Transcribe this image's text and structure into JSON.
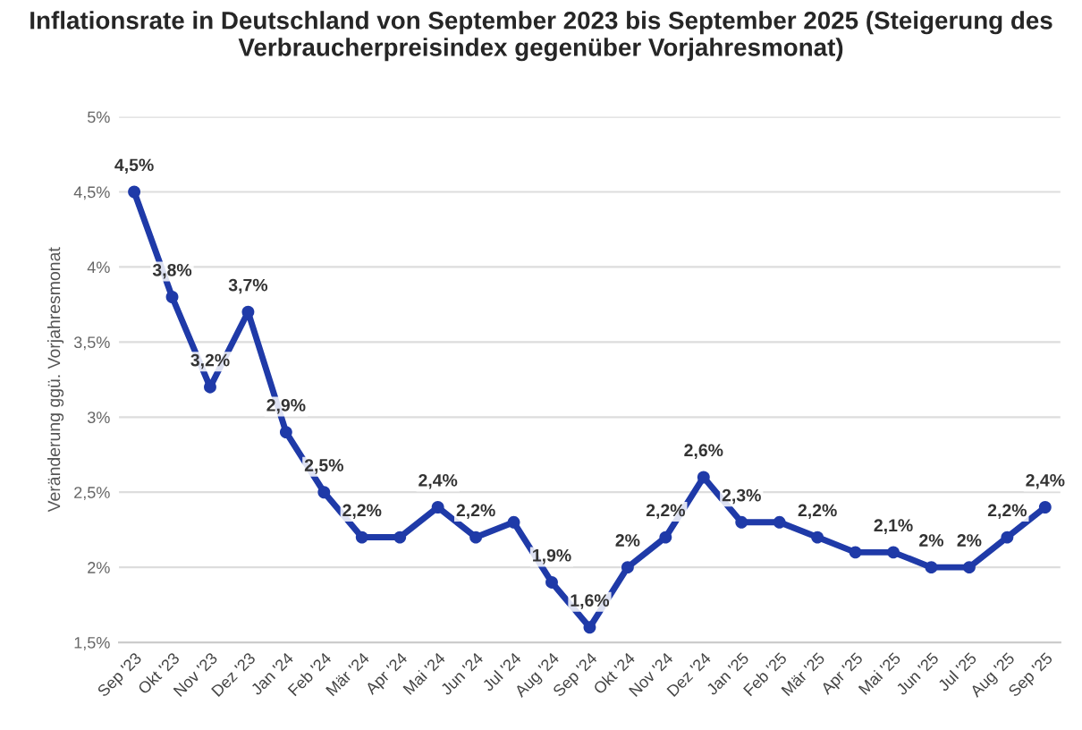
{
  "chart_data": {
    "type": "line",
    "title": "Inflationsrate in Deutschland von September 2023 bis September 2025 (Steigerung des Verbraucherpreisindex gegenüber Vorjahresmonat)",
    "ylabel": "Veränderung ggü. Vorjahresmonat",
    "categories": [
      "Sep '23",
      "Okt '23",
      "Nov '23",
      "Dez '23",
      "Jan '24",
      "Feb '24",
      "Mär '24",
      "Apr '24",
      "Mai '24",
      "Jun '24",
      "Jul '24",
      "Aug '24",
      "Sep '24",
      "Okt '24",
      "Nov '24",
      "Dez '24",
      "Jan '25",
      "Feb '25",
      "Mär '25",
      "Apr '25",
      "Mai '25",
      "Jun '25",
      "Jul '25",
      "Aug '25",
      "Sep '25"
    ],
    "series": [
      {
        "color": "#1f3aa8",
        "values": [
          4.5,
          3.8,
          3.2,
          3.7,
          2.9,
          2.5,
          2.2,
          2.2,
          2.4,
          2.2,
          2.3,
          1.9,
          1.6,
          2.0,
          2.2,
          2.6,
          2.3,
          2.3,
          2.2,
          2.1,
          2.1,
          2.0,
          2.0,
          2.2,
          2.4
        ],
        "value_labels": [
          "4,5%",
          "3,8%",
          "3,2%",
          "3,7%",
          "2,9%",
          "2,5%",
          "2,2%",
          null,
          "2,4%",
          "2,2%",
          null,
          "1,9%",
          "1,6%",
          "2%",
          "2,2%",
          "2,6%",
          "2,3%",
          null,
          "2,2%",
          null,
          "2,1%",
          "2%",
          "2%",
          "2,2%",
          "2,4%"
        ]
      }
    ],
    "ylim": [
      1.5,
      5
    ],
    "yticks": [
      {
        "value": 1.5,
        "label": "1,5%"
      },
      {
        "value": 2,
        "label": "2%"
      },
      {
        "value": 2.5,
        "label": "2,5%"
      },
      {
        "value": 3,
        "label": "3%"
      },
      {
        "value": 3.5,
        "label": "3,5%"
      },
      {
        "value": 4,
        "label": "4%"
      },
      {
        "value": 4.5,
        "label": "4,5%"
      },
      {
        "value": 5,
        "label": "5%"
      }
    ],
    "grid": "y",
    "marker": "circle",
    "line_style": "solid",
    "legend": false
  }
}
